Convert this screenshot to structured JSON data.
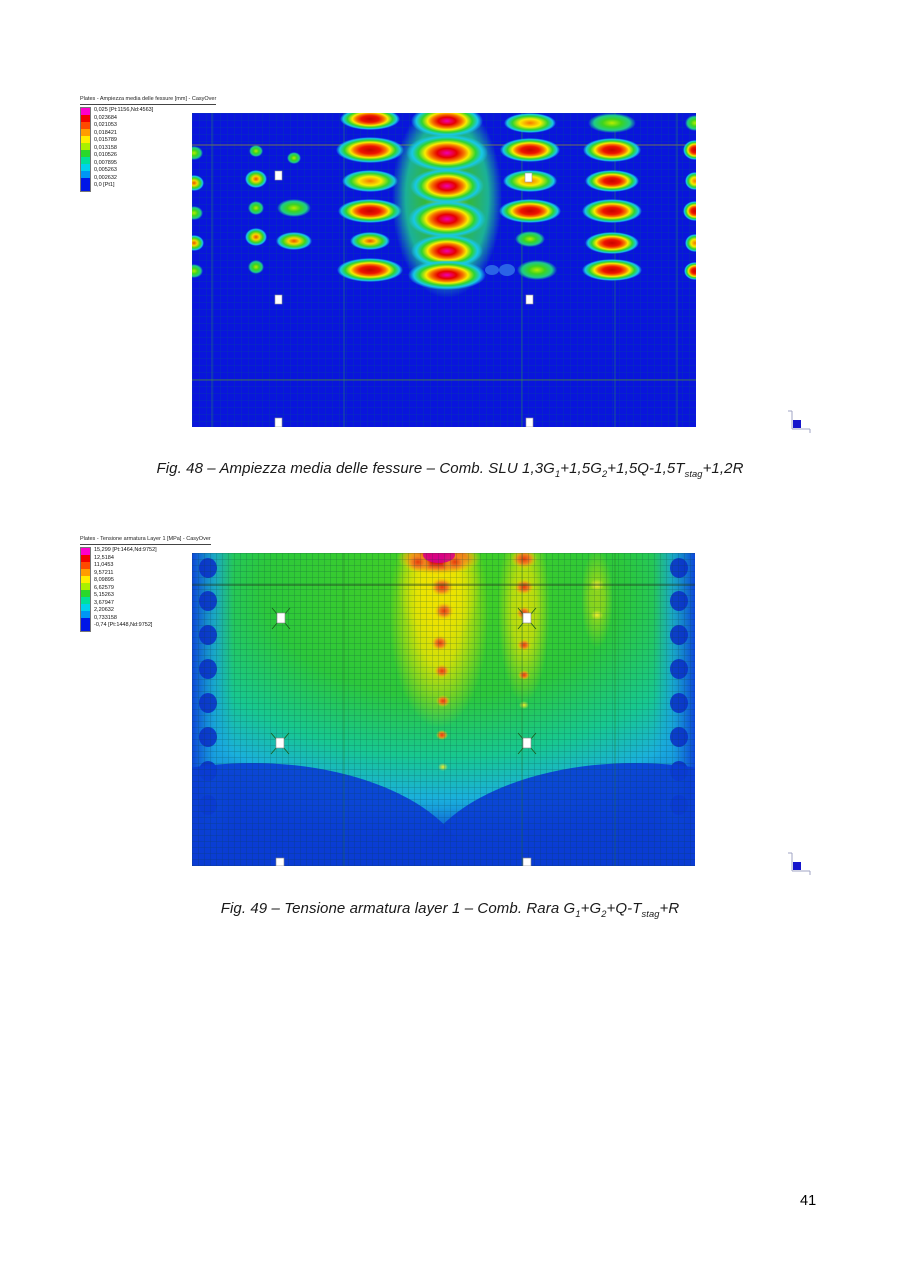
{
  "page": {
    "number": "41"
  },
  "colorbar_colors": [
    "#ff00cc",
    "#f40000",
    "#ff4a00",
    "#ff9c00",
    "#ffee00",
    "#aaf000",
    "#2ad82a",
    "#00e09a",
    "#00d2ea",
    "#0096f4",
    "#0016e6"
  ],
  "figure48": {
    "legend": {
      "title": "Plates - Ampiezza media delle fessure [mm] - CasyOver",
      "entries": [
        "0,025 [Pt:1156,Nd:4563]",
        "0,023684",
        "0,021053",
        "0,018421",
        "0,015789",
        "0,013158",
        "0,010526",
        "0,007895",
        "0,005263",
        "0,002632",
        "0,0 [Pt1]"
      ]
    },
    "caption": [
      {
        "t": "Fig. 48 – Ampiezza media delle fessure – Comb. SLU 1,3G"
      },
      {
        "s": "1"
      },
      {
        "t": "+1,5G"
      },
      {
        "s": "2"
      },
      {
        "t": "+1,5Q-1,5T"
      },
      {
        "s": "stag"
      },
      {
        "t": "+1,2R"
      }
    ]
  },
  "figure49": {
    "legend": {
      "title": "Plates - Tensione armatura Layer 1 [MPa] - CasyOver",
      "entries": [
        "15,299 [Pt:1464,Nd:9752]",
        "12,5184",
        "11,0453",
        "9,57211",
        "8,09895",
        "6,62579",
        "5,15263",
        "3,67947",
        "2,20632",
        "0,733158",
        "-0,74 [Pt:1448,Nd:9752]"
      ]
    },
    "caption": [
      {
        "t": "Fig. 49 – Tensione armatura layer 1 – Comb. Rara G"
      },
      {
        "s": "1"
      },
      {
        "t": "+G"
      },
      {
        "s": "2"
      },
      {
        "t": "+Q-T"
      },
      {
        "s": "stag"
      },
      {
        "t": "+R"
      }
    ]
  }
}
